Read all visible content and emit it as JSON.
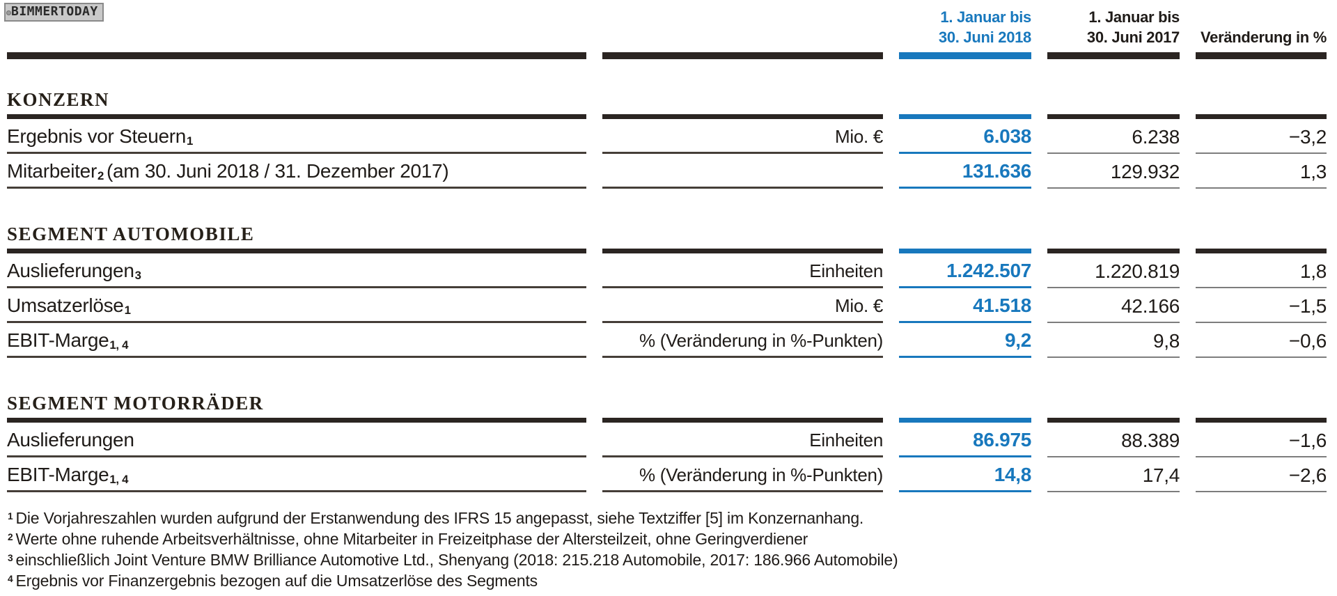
{
  "watermark": {
    "text": "BIMMERTODAY"
  },
  "colors": {
    "accent_blue": "#1878bd",
    "rule_dark": "#2b2522",
    "rule_gray": "#7d7d7d"
  },
  "columns": {
    "col2018": {
      "line1": "1. Januar bis",
      "line2": "30. Juni 2018"
    },
    "col2017": {
      "line1": "1. Januar bis",
      "line2": "30. Juni 2017"
    },
    "change": "Veränderung in %"
  },
  "sections": [
    {
      "title": "KONZERN",
      "rows": [
        {
          "label": "Ergebnis vor Steuern",
          "label_sup": "1",
          "unit": "Mio. €",
          "v2018": "6.038",
          "v2017": "6.238",
          "change": "−3,2"
        },
        {
          "label": "Mitarbeiter",
          "label_sup": "2",
          "label_rest": "(am 30. Juni 2018 / 31. Dezember 2017)",
          "unit": "",
          "v2018": "131.636",
          "v2017": "129.932",
          "change": "1,3"
        }
      ]
    },
    {
      "title": "SEGMENT AUTOMOBILE",
      "rows": [
        {
          "label": "Auslieferungen",
          "label_sup": "3",
          "unit": "Einheiten",
          "v2018": "1.242.507",
          "v2017": "1.220.819",
          "change": "1,8"
        },
        {
          "label": "Umsatzerlöse",
          "label_sup": "1",
          "unit": "Mio. €",
          "v2018": "41.518",
          "v2017": "42.166",
          "change": "−1,5"
        },
        {
          "label": "EBIT-Marge",
          "label_sup": "1, 4",
          "unit": "% (Veränderung in %-Punkten)",
          "v2018": "9,2",
          "v2017": "9,8",
          "change": "−0,6"
        }
      ]
    },
    {
      "title": "SEGMENT MOTORRÄDER",
      "rows": [
        {
          "label": "Auslieferungen",
          "label_sup": "",
          "unit": "Einheiten",
          "v2018": "86.975",
          "v2017": "88.389",
          "change": "−1,6"
        },
        {
          "label": "EBIT-Marge",
          "label_sup": "1, 4",
          "unit": "% (Veränderung in %-Punkten)",
          "v2018": "14,8",
          "v2017": "17,4",
          "change": "−2,6"
        }
      ]
    }
  ],
  "footnotes": [
    {
      "sup": "1",
      "text": "Die Vorjahreszahlen wurden aufgrund der Erstanwendung des IFRS 15 angepasst, siehe Textziffer [5] im Konzernanhang."
    },
    {
      "sup": "2",
      "text": "Werte ohne ruhende Arbeitsverhältnisse, ohne Mitarbeiter in Freizeitphase der Altersteilzeit, ohne Geringverdiener"
    },
    {
      "sup": "3",
      "text": "einschließlich Joint Venture BMW Brilliance Automotive Ltd., Shenyang (2018: 215.218 Automobile, 2017: 186.966 Automobile)"
    },
    {
      "sup": "4",
      "text": "Ergebnis vor Finanzergebnis bezogen auf die Umsatzerlöse des Segments"
    }
  ]
}
